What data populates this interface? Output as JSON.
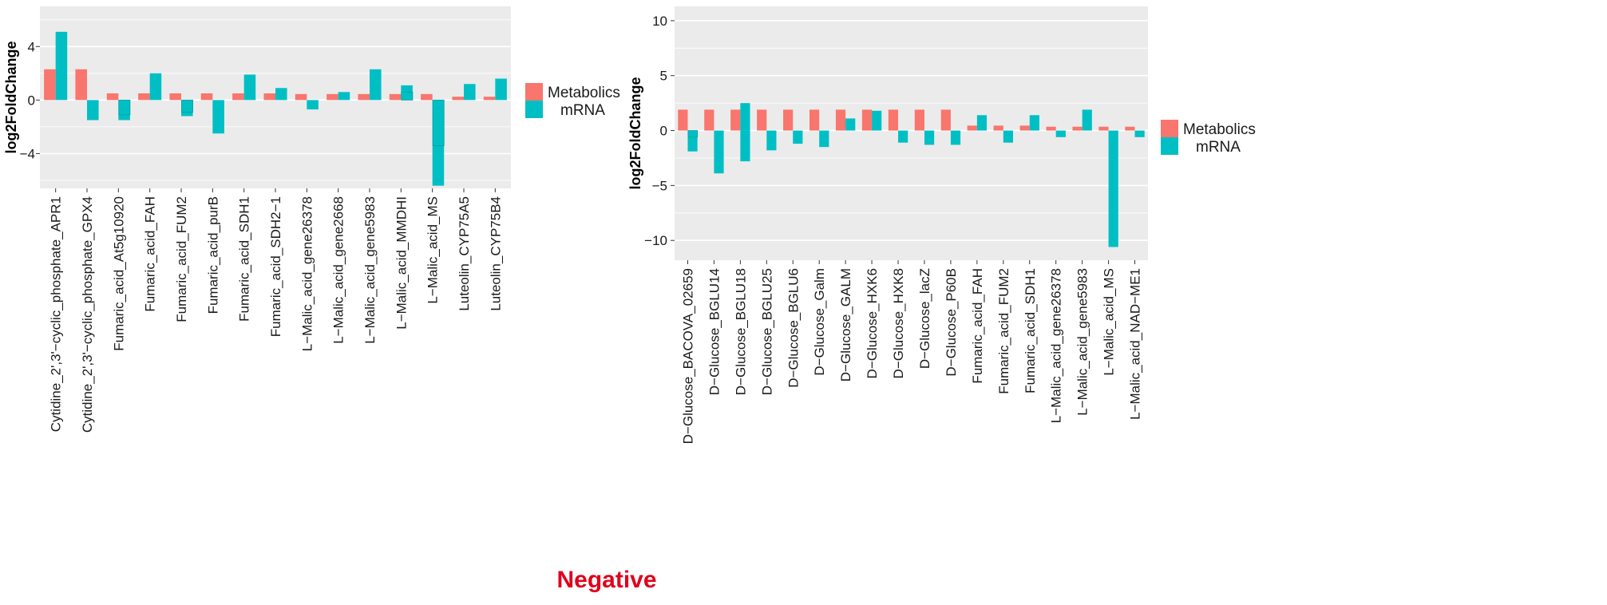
{
  "caption": "Negative",
  "colors": {
    "metabolics": "#F8766D",
    "mrna": "#00BFC4",
    "panel": "#EBEBEB",
    "caption": "#E0001B"
  },
  "chart_data": [
    {
      "type": "bar",
      "ylabel": "log2FoldChange",
      "xlabel": "",
      "ylim": [
        -6.6,
        7.0
      ],
      "yticks": [
        -4,
        0,
        4
      ],
      "legend": [
        "Metabolics",
        "mRNA"
      ],
      "categories": [
        "Cytidine_2',3'−cyclic_phosphate_APR1",
        "Cytidine_2',3'−cyclic_phosphate_GPX4",
        "Fumaric_acid_At5g10920",
        "Fumaric_acid_FAH",
        "Fumaric_acid_FUM2",
        "Fumaric_acid_purB",
        "Fumaric_acid_SDH1",
        "Fumaric_acid_SDH2−1",
        "L−Malic_acid_gene26378",
        "L−Malic_acid_gene2668",
        "L−Malic_acid_gene5983",
        "L−Malic_acid_MMDHI",
        "L−Malic_acid_MS",
        "Luteolin_CYP75A5",
        "Luteolin_CYP75B4"
      ],
      "series": [
        {
          "name": "Metabolics",
          "values": [
            2.3,
            2.3,
            0.5,
            0.5,
            0.5,
            0.5,
            0.5,
            0.5,
            0.45,
            0.45,
            0.45,
            0.45,
            0.45,
            0.25,
            0.25
          ]
        },
        {
          "name": "mRNA",
          "values": [
            [
              0,
              5.1
            ],
            [
              0,
              -1.5
            ],
            [
              -1.1,
              -1.5
            ],
            [
              0,
              2.0
            ],
            [
              -0.9,
              -1.2
            ],
            [
              0,
              -2.5
            ],
            [
              0,
              1.9
            ],
            [
              0,
              0.9
            ],
            [
              0,
              -0.7
            ],
            [
              0,
              0.6
            ],
            [
              0,
              2.3
            ],
            [
              0.6,
              1.1
            ],
            [
              -3.4,
              -6.4
            ],
            [
              0,
              1.2
            ],
            [
              0,
              1.6
            ]
          ]
        }
      ]
    },
    {
      "type": "bar",
      "ylabel": "log2FoldChange",
      "xlabel": "",
      "ylim": [
        -11.8,
        11.3
      ],
      "yticks": [
        -10,
        -5,
        0,
        5,
        10
      ],
      "legend": [
        "Metabolics",
        "mRNA"
      ],
      "categories": [
        "D−Glucose_BACOVA_02659",
        "D−Glucose_BGLU14",
        "D−Glucose_BGLU18",
        "D−Glucose_BGLU25",
        "D−Glucose_BGLU6",
        "D−Glucose_Galm",
        "D−Glucose_GALM",
        "D−Glucose_HXK6",
        "D−Glucose_HXK8",
        "D−Glucose_lacZ",
        "D−Glucose_P60B",
        "Fumaric_acid_FAH",
        "Fumaric_acid_FUM2",
        "Fumaric_acid_SDH1",
        "L−Malic_acid_gene26378",
        "L−Malic_acid_gene5983",
        "L−Malic_acid_MS",
        "L−Malic_acid_NAD−ME1"
      ],
      "series": [
        {
          "name": "Metabolics",
          "values": [
            1.9,
            1.9,
            1.9,
            1.9,
            1.9,
            1.9,
            1.9,
            1.9,
            1.9,
            1.9,
            1.9,
            0.45,
            0.45,
            0.45,
            0.35,
            0.35,
            0.35,
            0.35
          ]
        },
        {
          "name": "mRNA",
          "values": [
            [
              -0.6,
              -1.9
            ],
            [
              0,
              -3.9
            ],
            [
              2.5,
              -2.8
            ],
            [
              0,
              -1.8
            ],
            [
              0,
              -1.2
            ],
            [
              0,
              -1.5
            ],
            [
              0,
              1.1
            ],
            [
              0,
              1.8
            ],
            [
              0,
              -1.1
            ],
            [
              0,
              -1.3
            ],
            [
              0,
              -1.3
            ],
            [
              0,
              1.4
            ],
            [
              0,
              -1.1
            ],
            [
              0,
              1.4
            ],
            [
              0,
              -0.6
            ],
            [
              0,
              1.9
            ],
            [
              0,
              -10.6
            ],
            [
              0,
              -0.6
            ]
          ]
        }
      ]
    }
  ]
}
